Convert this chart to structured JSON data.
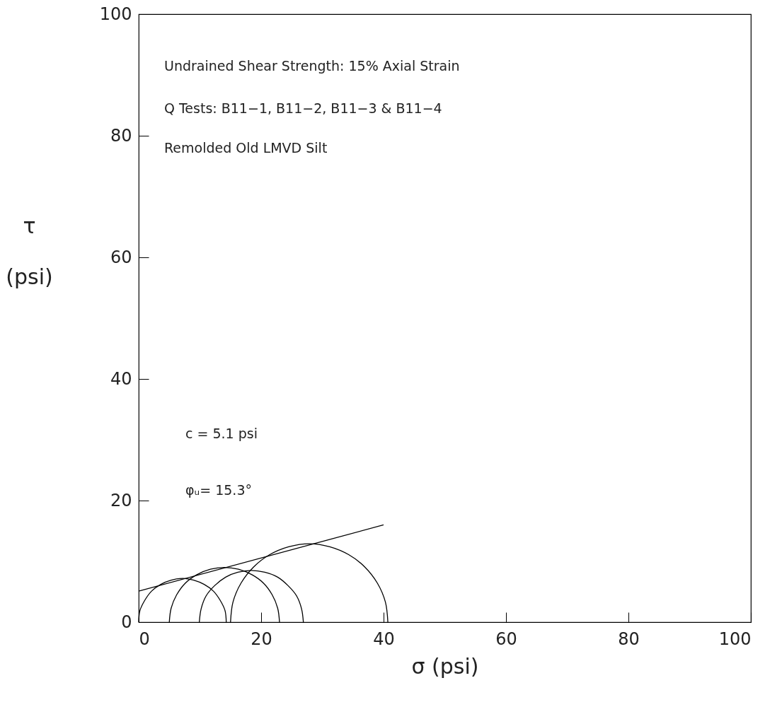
{
  "chart_data": {
    "type": "line",
    "xlabel": "σ (psi)",
    "ylabel": "τ (psi)",
    "xlim": [
      0,
      100
    ],
    "ylim": [
      0,
      100
    ],
    "xticks": [
      0,
      20,
      40,
      60,
      80,
      100
    ],
    "yticks": [
      0,
      20,
      40,
      60,
      80,
      100
    ],
    "grid": false,
    "marker": "none",
    "line_style": "solid",
    "annotations": [
      "Undrained Shear Strength: 15% Axial Strain",
      "Q Tests:  B11−1, B11−2, B11−3 & B11−4",
      "Remolded Old LMVD Silt",
      "c = 5.1 psi",
      "φᵤ= 15.3°"
    ],
    "series": [
      {
        "color": "#000000",
        "x": [
          14.3,
          14.1,
          13.3,
          12.2,
          10.7,
          9.0,
          7.2,
          5.3,
          3.6,
          2.1,
          1.0,
          0.2,
          0
        ],
        "values": [
          0,
          1.9,
          3.6,
          5.1,
          6.2,
          6.9,
          7.2,
          6.9,
          6.2,
          5.1,
          3.6,
          1.9,
          0
        ]
      },
      {
        "color": "#000000",
        "x": [
          23.0,
          22.7,
          21.8,
          20.4,
          18.5,
          16.3,
          14.0,
          11.7,
          9.5,
          7.6,
          6.2,
          5.3,
          5.0
        ],
        "values": [
          0,
          2.3,
          4.5,
          6.4,
          7.8,
          8.7,
          9.0,
          8.7,
          7.8,
          6.4,
          4.5,
          2.3,
          0
        ]
      },
      {
        "color": "#000000",
        "x": [
          26.9,
          26.6,
          25.8,
          24.4,
          22.7,
          20.6,
          18.4,
          16.2,
          14.2,
          12.4,
          11.0,
          10.2,
          9.9
        ],
        "values": [
          0,
          2.2,
          4.3,
          6.0,
          7.4,
          8.2,
          8.5,
          8.2,
          7.4,
          6.0,
          4.3,
          2.2,
          0
        ]
      },
      {
        "color": "#000000",
        "x": [
          40.7,
          40.3,
          39.0,
          36.9,
          34.3,
          31.2,
          27.9,
          24.5,
          21.4,
          18.8,
          16.7,
          15.4,
          15.0
        ],
        "values": [
          0,
          3.3,
          6.4,
          9.1,
          11.1,
          12.4,
          12.9,
          12.4,
          11.1,
          9.1,
          6.4,
          3.3,
          0
        ]
      },
      {
        "color": "#000000",
        "x": [
          0,
          40
        ],
        "values": [
          5.1,
          16.0
        ]
      }
    ]
  }
}
